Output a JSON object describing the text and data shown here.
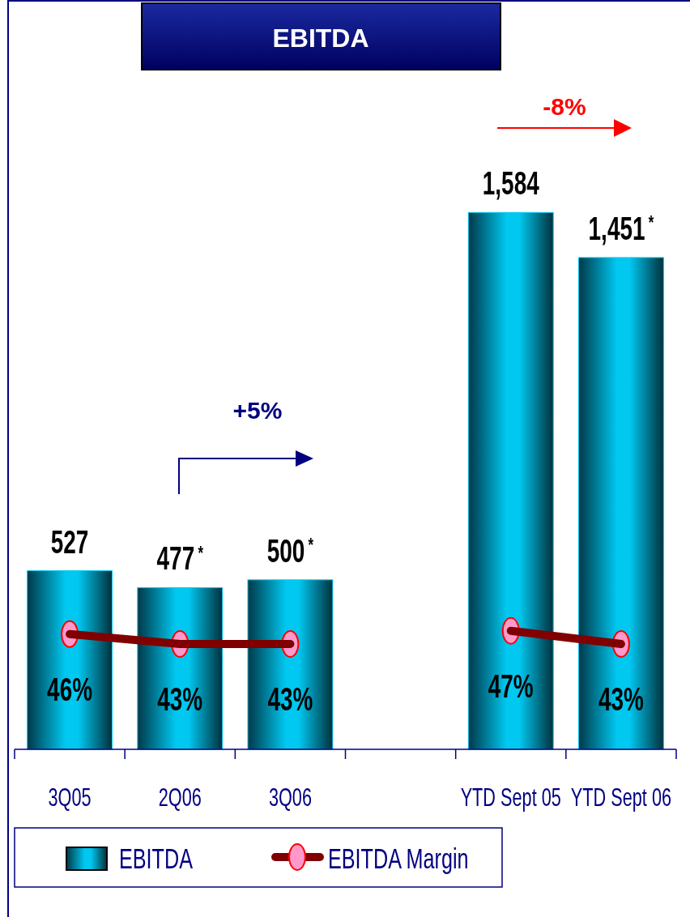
{
  "chart_data": {
    "type": "bar",
    "title": "EBITDA",
    "categories": [
      "3Q05",
      "2Q06",
      "3Q06",
      null,
      "YTD Sept 05",
      "YTD Sept 06"
    ],
    "series": [
      {
        "name": "EBITDA",
        "color": "#00c8f0",
        "values": [
          527,
          477,
          500,
          null,
          1584,
          1451
        ],
        "value_labels": [
          "527",
          "477$^{*}$",
          "500$^{*}$",
          null,
          "1,584",
          "1,451$^{*}$"
        ]
      },
      {
        "name": "EBITDA Margin",
        "type": "line",
        "axis": "y2",
        "color": "#800000",
        "marker": "circle",
        "values": [
          46,
          43,
          43,
          null,
          47,
          43
        ],
        "value_labels": [
          "46%",
          "43%",
          "43%",
          null,
          "47%",
          "43%"
        ]
      }
    ],
    "tick_labels": "x",
    "legend": "bottom",
    "annotations": [
      "+5%",
      "-8%"
    ]
  }
}
